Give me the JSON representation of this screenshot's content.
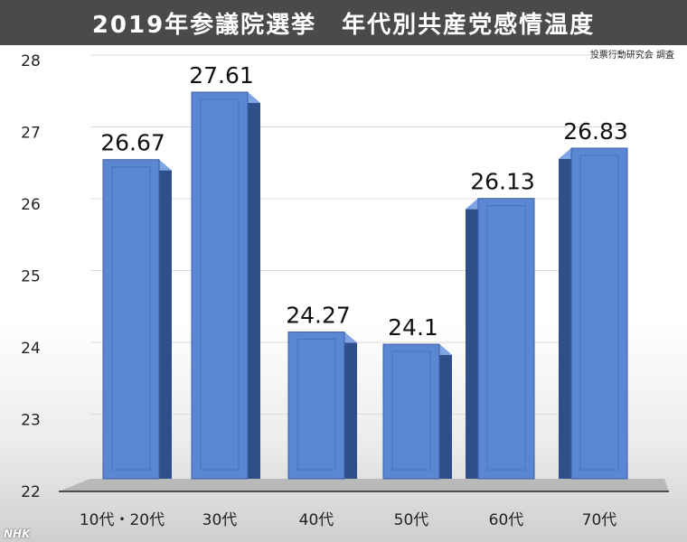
{
  "header": {
    "title": "2019年参議院選挙　年代別共産党感情温度"
  },
  "credit": "投票行動研究会 調査",
  "logo": "NHK",
  "colors": {
    "bar_front": "#5b86d2",
    "bar_side": "#2f4f8a",
    "bar_top": "#7fa4e4",
    "title_bg": "#4a4a4a"
  },
  "chart_data": {
    "type": "bar",
    "categories": [
      "10代・20代",
      "30代",
      "40代",
      "50代",
      "60代",
      "70代"
    ],
    "values": [
      26.67,
      27.61,
      24.27,
      24.1,
      26.13,
      26.83
    ],
    "value_labels": [
      "26.67",
      "27.61",
      "24.27",
      "24.1",
      "26.13",
      "26.83"
    ],
    "yticks": [
      "22",
      "23",
      "24",
      "25",
      "26",
      "27",
      "28"
    ],
    "ylim": [
      22,
      28
    ],
    "grid": true,
    "title": "2019年参議院選挙　年代別共産党感情温度"
  }
}
